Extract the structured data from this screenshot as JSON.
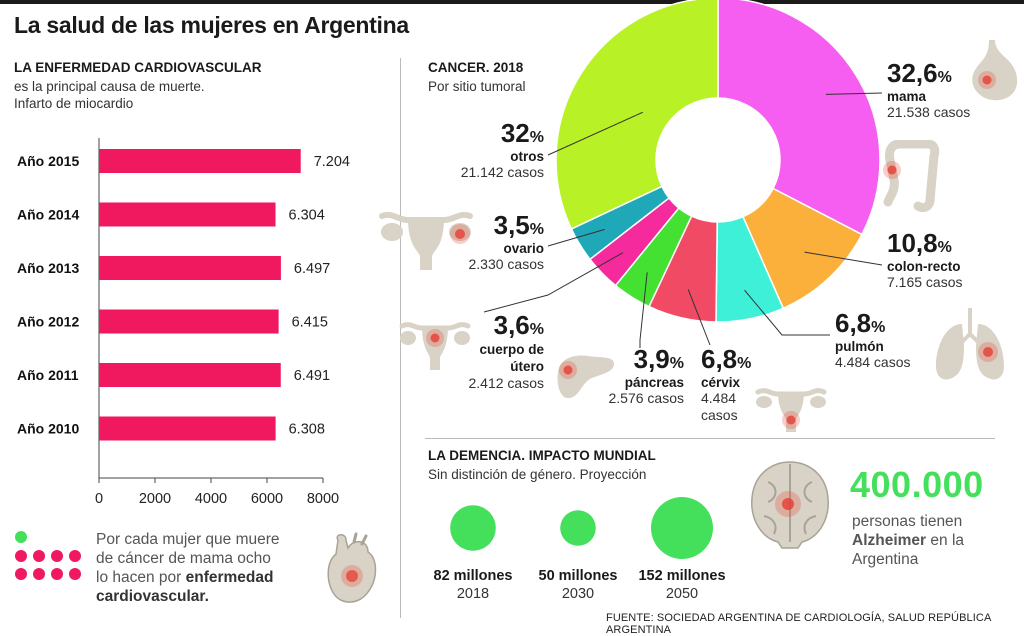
{
  "title": "La salud de las mujeres en Argentina",
  "cardio": {
    "title": "LA ENFERMEDAD CARDIOVASCULAR",
    "subtitle_1": "es la principal causa de muerte.",
    "subtitle_2": "Infarto de miocardio"
  },
  "cancer": {
    "title": "CANCER. 2018",
    "subtitle": "Por sitio tumoral"
  },
  "dementia": {
    "title": "LA DEMENCIA. IMPACTO MUNDIAL",
    "subtitle": "Sin distinción de género. Proyección",
    "big_number": "400.000",
    "text_1": "personas tienen",
    "text_bold": "Alzheimer",
    "text_2": " en la",
    "text_3": "Argentina"
  },
  "legend": {
    "text_1": "Por cada mujer que muere",
    "text_2": "de cáncer de mama ocho",
    "text_3": "lo hacen por ",
    "text_bold_1": "enfermedad",
    "text_bold_2": "cardiovascular.",
    "dot_color_green": "#44e05c",
    "dot_color_pink": "#f0195f"
  },
  "source": "FUENTE: SOCIEDAD ARGENTINA DE CARDIOLOGÍA, SALUD REPÚBLICA ARGENTINA",
  "colors": {
    "bar": "#f0195f",
    "green": "#44e05c",
    "organ": "#d8d3c6",
    "organ_spot": "#e8372c"
  },
  "chart_data": [
    {
      "type": "bar",
      "orientation": "horizontal",
      "categories": [
        "Año 2015",
        "Año 2014",
        "Año 2013",
        "Año 2012",
        "Año 2011",
        "Año 2010"
      ],
      "values": [
        7204,
        6304,
        6497,
        6415,
        6491,
        6308
      ],
      "value_labels": [
        "7.204",
        "6.304",
        "6.497",
        "6.415",
        "6.491",
        "6.308"
      ],
      "xlim": [
        0,
        8000
      ],
      "xticks": [
        "0",
        "2000",
        "4000",
        "6000",
        "8000"
      ]
    },
    {
      "type": "pie",
      "donut": true,
      "slices": [
        {
          "name": "mama",
          "pct": "32,6",
          "value": 32.6,
          "cases": "21.538 casos",
          "color": "#f55ef0"
        },
        {
          "name": "colon-recto",
          "pct": "10,8",
          "value": 10.8,
          "cases": "7.165 casos",
          "color": "#fbb03b"
        },
        {
          "name": "pulmón",
          "pct": "6,8",
          "value": 6.8,
          "cases": "4.484 casos",
          "color": "#3ff0d9"
        },
        {
          "name": "cérvix",
          "pct": "6,8",
          "value": 6.8,
          "cases": "4.484 casos",
          "color": "#f04a65"
        },
        {
          "name": "páncreas",
          "pct": "3,9",
          "value": 3.9,
          "cases": "2.576 casos",
          "color": "#44e032"
        },
        {
          "name": "cuerpo de útero",
          "pct": "3,6",
          "value": 3.6,
          "cases": "2.412 casos",
          "color": "#f52a9c"
        },
        {
          "name": "ovario",
          "pct": "3,5",
          "value": 3.5,
          "cases": "2.330 casos",
          "color": "#1fa8b8"
        },
        {
          "name": "otros",
          "pct": "32",
          "value": 32,
          "cases": "21.142 casos",
          "color": "#b8f226"
        }
      ]
    },
    {
      "type": "bubble",
      "items": [
        {
          "label": "82 millones",
          "year": "2018",
          "value": 82
        },
        {
          "label": "50 millones",
          "year": "2030",
          "value": 50
        },
        {
          "label": "152 millones",
          "year": "2050",
          "value": 152
        }
      ]
    }
  ]
}
